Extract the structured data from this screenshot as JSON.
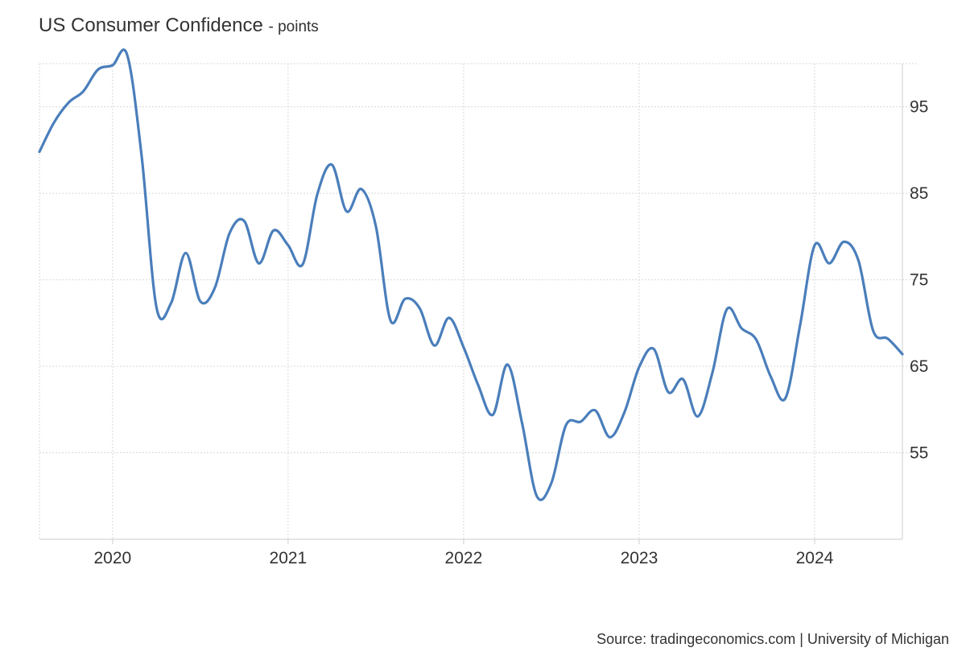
{
  "chart_data": {
    "type": "line",
    "title": "US Consumer Confidence",
    "unit": "- points",
    "source": "Source: tradingeconomics.com | University of Michigan",
    "colors": {
      "line": "#4a7ebb",
      "grid": "#d9d9d9",
      "axis": "#cccccc"
    },
    "grid": true,
    "x_range": [
      "2019-08",
      "2024-07"
    ],
    "ylim": [
      45,
      100
    ],
    "y_ticks": [
      "55",
      "65",
      "75",
      "85",
      "95"
    ],
    "x_ticks": [
      "2020",
      "2021",
      "2022",
      "2023",
      "2024"
    ],
    "series": [
      {
        "x": [
          "2019-08",
          "2019-09",
          "2019-10",
          "2019-11",
          "2019-12",
          "2020-01",
          "2020-02",
          "2020-03",
          "2020-04",
          "2020-05",
          "2020-06",
          "2020-07",
          "2020-08",
          "2020-09",
          "2020-10",
          "2020-11",
          "2020-12",
          "2021-01",
          "2021-02",
          "2021-03",
          "2021-04",
          "2021-05",
          "2021-06",
          "2021-07",
          "2021-08",
          "2021-09",
          "2021-10",
          "2021-11",
          "2021-12",
          "2022-01",
          "2022-02",
          "2022-03",
          "2022-04",
          "2022-05",
          "2022-06",
          "2022-07",
          "2022-08",
          "2022-09",
          "2022-10",
          "2022-11",
          "2022-12",
          "2023-01",
          "2023-02",
          "2023-03",
          "2023-04",
          "2023-05",
          "2023-06",
          "2023-07",
          "2023-08",
          "2023-09",
          "2023-10",
          "2023-11",
          "2023-12",
          "2024-01",
          "2024-02",
          "2024-03",
          "2024-04",
          "2024-05",
          "2024-06",
          "2024-07"
        ],
        "values": [
          89.8,
          93.2,
          95.5,
          96.8,
          99.3,
          99.8,
          101.0,
          89.1,
          71.8,
          72.3,
          78.1,
          72.5,
          74.1,
          80.4,
          81.8,
          76.9,
          80.7,
          79.0,
          76.8,
          84.9,
          88.3,
          82.9,
          85.5,
          81.2,
          70.3,
          72.8,
          71.7,
          67.4,
          70.6,
          67.2,
          62.8,
          59.4,
          65.2,
          58.4,
          50.0,
          51.5,
          58.2,
          58.6,
          59.9,
          56.8,
          59.7,
          64.9,
          67.0,
          62.0,
          63.5,
          59.2,
          64.2,
          71.6,
          69.4,
          68.1,
          63.8,
          61.3,
          69.7,
          79.0,
          76.9,
          79.4,
          77.2,
          69.1,
          68.2,
          66.4
        ]
      }
    ]
  }
}
